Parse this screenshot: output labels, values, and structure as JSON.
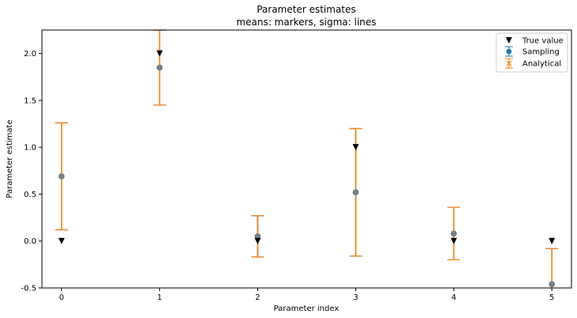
{
  "chart_data": {
    "type": "scatter",
    "title": "Parameter estimates",
    "subtitle": "means: markers, sigma: lines",
    "xlabel": "Parameter index",
    "ylabel": "Parameter estimate",
    "xlim": [
      -0.2,
      5.2
    ],
    "ylim": [
      -0.5,
      2.25
    ],
    "xticks": [
      0,
      1,
      2,
      3,
      4,
      5
    ],
    "yticks": [
      -0.5,
      0.0,
      0.5,
      1.0,
      1.5,
      2.0
    ],
    "ytick_labels": [
      "-0.5",
      "0.0",
      "0.5",
      "1.0",
      "1.5",
      "2.0"
    ],
    "grid": false,
    "legend_position": "top-right",
    "series": [
      {
        "name": "True value",
        "marker": "triangle-down",
        "color": "#000000",
        "x": [
          0,
          1,
          2,
          3,
          4,
          5
        ],
        "y": [
          0.0,
          2.0,
          0.0,
          1.0,
          0.0,
          0.0
        ]
      },
      {
        "name": "Sampling",
        "marker": "circle-errorbar",
        "color": "#1f77b4",
        "x": [
          0,
          1,
          2,
          3,
          4,
          5
        ],
        "y": [
          0.69,
          1.85,
          0.05,
          0.52,
          0.08,
          -0.46
        ],
        "yerr": [
          0.57,
          0.4,
          0.22,
          0.68,
          0.28,
          0.38
        ]
      },
      {
        "name": "Analytical",
        "marker": "x-errorbar",
        "color": "#ff7f0e",
        "x": [
          0,
          1,
          2,
          3,
          4,
          5
        ],
        "y": [
          0.69,
          1.85,
          0.05,
          0.52,
          0.08,
          -0.46
        ],
        "yerr": [
          0.57,
          0.4,
          0.22,
          0.68,
          0.28,
          0.38
        ]
      }
    ]
  }
}
